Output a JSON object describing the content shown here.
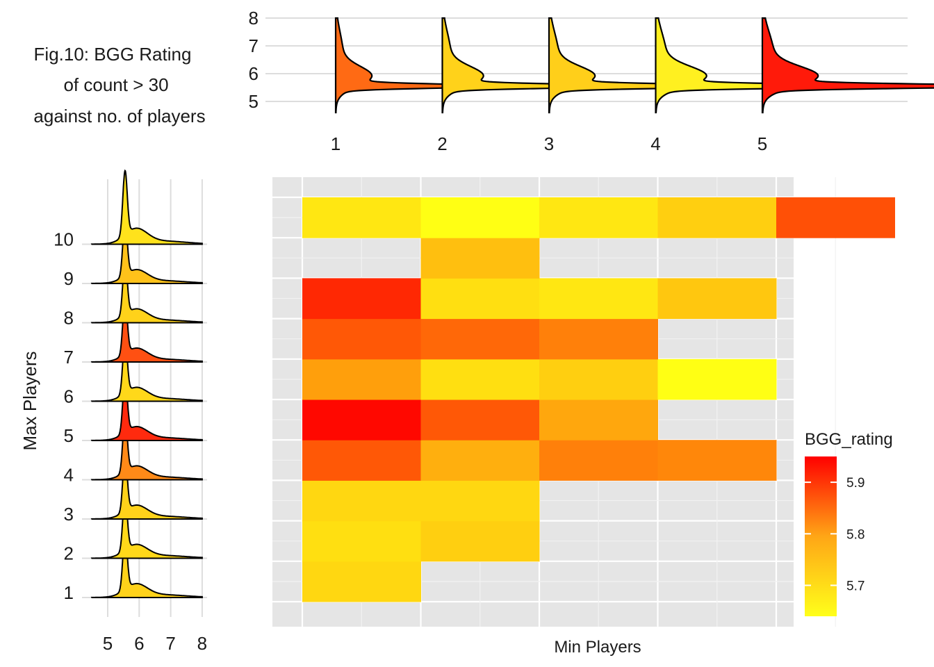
{
  "title_lines": [
    "Fig.10: BGG Rating",
    "of count > 30",
    "against no. of players"
  ],
  "chart_data": [
    {
      "type": "area",
      "panel": "top ridgeline (density of rating by min players)",
      "xlabel": "",
      "ylabel": "",
      "x_categories": [
        "1",
        "2",
        "3",
        "4",
        "5"
      ],
      "y_ticks": [
        "5",
        "6",
        "7",
        "8"
      ],
      "ylim": [
        4.6,
        8.0
      ],
      "series": [
        {
          "category": "1",
          "mean_rating": 5.86,
          "peak": 5.55,
          "color": "#FF6A14"
        },
        {
          "category": "2",
          "mean_rating": 5.69,
          "peak": 5.58,
          "color": "#FFD21A"
        },
        {
          "category": "3",
          "mean_rating": 5.7,
          "peak": 5.55,
          "color": "#FFCF1A"
        },
        {
          "category": "4",
          "mean_rating": 5.66,
          "peak": 5.55,
          "color": "#FFF020"
        },
        {
          "category": "5",
          "mean_rating": 5.94,
          "peak": 5.55,
          "color": "#FF1A0A"
        }
      ]
    },
    {
      "type": "area",
      "panel": "left ridgeline (density of rating by max players)",
      "xlabel": "",
      "ylabel": "Max Players",
      "x_ticks": [
        "5",
        "6",
        "7",
        "8"
      ],
      "xlim": [
        4.5,
        8.0
      ],
      "y_categories": [
        "1",
        "2",
        "3",
        "4",
        "5",
        "6",
        "7",
        "8",
        "9",
        "10"
      ],
      "series": [
        {
          "category": "1",
          "mean_rating": 5.7,
          "color": "#FFD21A"
        },
        {
          "category": "2",
          "mean_rating": 5.69,
          "color": "#FFD81A"
        },
        {
          "category": "3",
          "mean_rating": 5.7,
          "color": "#FFD21A"
        },
        {
          "category": "4",
          "mean_rating": 5.81,
          "color": "#FF8A18"
        },
        {
          "category": "5",
          "mean_rating": 5.93,
          "color": "#FF2A0E"
        },
        {
          "category": "6",
          "mean_rating": 5.69,
          "color": "#FFD81A"
        },
        {
          "category": "7",
          "mean_rating": 5.88,
          "color": "#FF5012"
        },
        {
          "category": "8",
          "mean_rating": 5.7,
          "color": "#FFD21A"
        },
        {
          "category": "9",
          "mean_rating": 5.72,
          "color": "#FFC21A"
        },
        {
          "category": "10",
          "mean_rating": 5.68,
          "color": "#FFE21C"
        }
      ]
    },
    {
      "type": "heatmap",
      "xlabel": "Min Players",
      "ylabel": "",
      "x_categories": [
        "1",
        "2",
        "3",
        "4",
        "5"
      ],
      "y_categories": [
        "1",
        "2",
        "3",
        "4",
        "5",
        "6",
        "7",
        "8",
        "9",
        "10"
      ],
      "legend": {
        "title": "BGG_rating",
        "ticks": [
          5.7,
          5.8,
          5.9
        ],
        "range": [
          5.64,
          5.95
        ],
        "position": "right",
        "low_color": "#FFFF1A",
        "high_color": "#FF0000"
      },
      "grid": true,
      "cells": [
        {
          "min": 1,
          "max": 1,
          "rating": 5.69
        },
        {
          "min": 1,
          "max": 2,
          "rating": 5.68
        },
        {
          "min": 2,
          "max": 2,
          "rating": 5.7
        },
        {
          "min": 1,
          "max": 3,
          "rating": 5.69
        },
        {
          "min": 2,
          "max": 3,
          "rating": 5.69
        },
        {
          "min": 1,
          "max": 4,
          "rating": 5.85
        },
        {
          "min": 2,
          "max": 4,
          "rating": 5.74
        },
        {
          "min": 3,
          "max": 4,
          "rating": 5.8
        },
        {
          "min": 4,
          "max": 4,
          "rating": 5.79
        },
        {
          "min": 1,
          "max": 5,
          "rating": 5.95
        },
        {
          "min": 2,
          "max": 5,
          "rating": 5.85
        },
        {
          "min": 3,
          "max": 5,
          "rating": 5.75
        },
        {
          "min": 1,
          "max": 6,
          "rating": 5.76
        },
        {
          "min": 2,
          "max": 6,
          "rating": 5.68
        },
        {
          "min": 3,
          "max": 6,
          "rating": 5.7
        },
        {
          "min": 4,
          "max": 6,
          "rating": 5.64
        },
        {
          "min": 1,
          "max": 7,
          "rating": 5.85
        },
        {
          "min": 2,
          "max": 7,
          "rating": 5.83
        },
        {
          "min": 3,
          "max": 7,
          "rating": 5.8
        },
        {
          "min": 1,
          "max": 8,
          "rating": 5.91
        },
        {
          "min": 2,
          "max": 8,
          "rating": 5.68
        },
        {
          "min": 3,
          "max": 8,
          "rating": 5.67
        },
        {
          "min": 4,
          "max": 8,
          "rating": 5.71
        },
        {
          "min": 2,
          "max": 9,
          "rating": 5.72
        },
        {
          "min": 1,
          "max": 10,
          "rating": 5.67
        },
        {
          "min": 2,
          "max": 10,
          "rating": 5.64
        },
        {
          "min": 3,
          "max": 10,
          "rating": 5.67
        },
        {
          "min": 4,
          "max": 10,
          "rating": 5.7
        },
        {
          "min": 5,
          "max": 10,
          "rating": 5.86
        }
      ]
    }
  ]
}
